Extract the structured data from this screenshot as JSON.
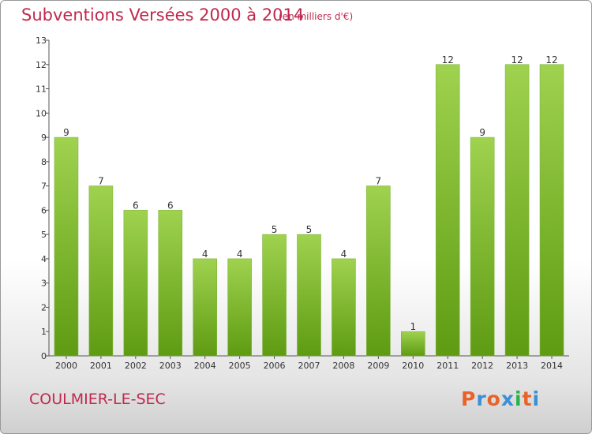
{
  "header": {
    "title": "Subventions Versées 2000 à 2014",
    "subtitle": "(en milliers d'€)"
  },
  "footer": {
    "commune": "COULMIER-LE-SEC",
    "logo_text": "Proxiti"
  },
  "colors": {
    "title": "#c0294f",
    "bar_light": "#9fd24f",
    "bar_dark": "#5e9b12",
    "logo_letters": [
      "#e8632a",
      "#3a8fd6",
      "#e8632a",
      "#3a8fd6",
      "#2bb14a",
      "#e8632a",
      "#3a8fd6"
    ]
  },
  "chart_data": {
    "type": "bar",
    "title": "Subventions Versées 2000 à 2014",
    "subtitle": "(en milliers d'€)",
    "categories": [
      "2000",
      "2001",
      "2002",
      "2003",
      "2004",
      "2005",
      "2006",
      "2007",
      "2008",
      "2009",
      "2010",
      "2011",
      "2012",
      "2013",
      "2014"
    ],
    "values": [
      9,
      7,
      6,
      6,
      4,
      4,
      5,
      5,
      4,
      7,
      1,
      12,
      9,
      12,
      12
    ],
    "data_labels": [
      "9",
      "7",
      "6",
      "6",
      "4",
      "4",
      "5",
      "5",
      "4",
      "7",
      "1",
      "12",
      "9",
      "12",
      "12"
    ],
    "yticks": [
      "0",
      "1",
      "2",
      "3",
      "4",
      "5",
      "6",
      "7",
      "8",
      "9",
      "10",
      "11",
      "12",
      "13"
    ],
    "ylim": [
      0,
      13
    ],
    "grid": false,
    "legend": "none"
  }
}
